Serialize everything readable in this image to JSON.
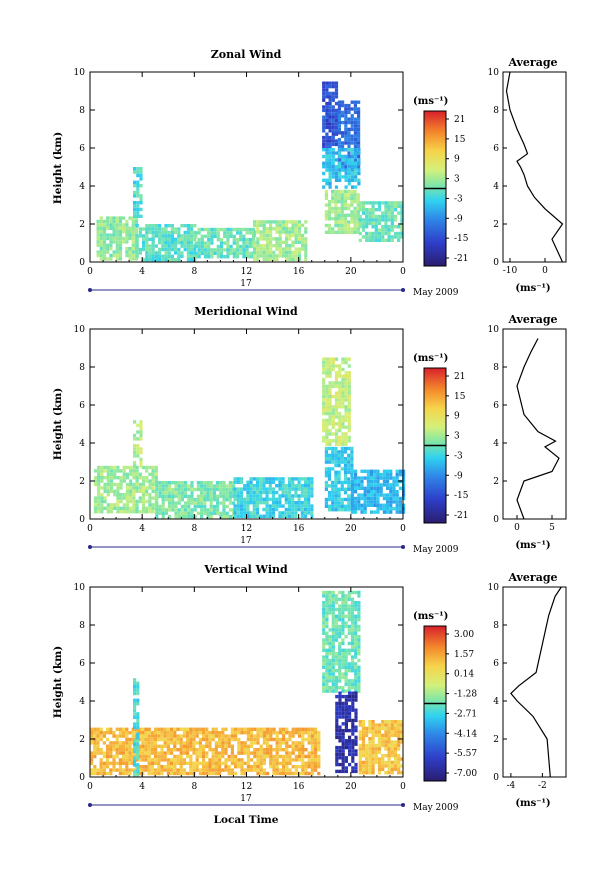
{
  "figure": {
    "x_axis_label": "Local Time",
    "date_label": "May 2009",
    "day_label": "17",
    "unit_label": "(ms⁻¹)",
    "average_title": "Average"
  },
  "chart_data": [
    {
      "type": "heatmap",
      "title": "Zonal Wind",
      "ylabel": "Height (km)",
      "x_ticks": [
        "0",
        "4",
        "8",
        "12",
        "16",
        "20",
        "0"
      ],
      "xlim": [
        0,
        24
      ],
      "y_ticks": [
        "0",
        "2",
        "4",
        "6",
        "8",
        "10"
      ],
      "ylim": [
        0,
        10
      ],
      "colorbar_ticks": [
        "21",
        "15",
        "9",
        "3",
        "-3",
        "-9",
        "-15",
        "-21"
      ],
      "colorbar_range": [
        -24,
        24
      ],
      "blocks": [
        {
          "x": [
            0.5,
            3.5
          ],
          "y": [
            0.2,
            2.4
          ],
          "v": 2
        },
        {
          "x": [
            3.3,
            3.8
          ],
          "y": [
            2.4,
            5.0
          ],
          "v": -2
        },
        {
          "x": [
            3.5,
            8.0
          ],
          "y": [
            0.2,
            2.0
          ],
          "v": -1
        },
        {
          "x": [
            8.0,
            12.5
          ],
          "y": [
            0.3,
            1.8
          ],
          "v": 0
        },
        {
          "x": [
            12.5,
            16.5
          ],
          "y": [
            0.2,
            2.2
          ],
          "v": 3
        },
        {
          "x": [
            17.8,
            19.0
          ],
          "y": [
            6.0,
            9.5
          ],
          "v": -15
        },
        {
          "x": [
            19.0,
            20.6
          ],
          "y": [
            5.0,
            8.5
          ],
          "v": -12
        },
        {
          "x": [
            17.8,
            20.6
          ],
          "y": [
            4.0,
            6.0
          ],
          "v": -5
        },
        {
          "x": [
            18.0,
            20.6
          ],
          "y": [
            1.5,
            3.8
          ],
          "v": 3
        },
        {
          "x": [
            20.6,
            24.0
          ],
          "y": [
            1.2,
            3.2
          ],
          "v": 0
        }
      ],
      "profile": {
        "xlabel": "(ms⁻¹)",
        "x_ticks": [
          "-10",
          "0"
        ],
        "xlim": [
          -12,
          6
        ],
        "ylim": [
          0,
          10
        ],
        "y_ticks": [
          "0",
          "2",
          "4",
          "6",
          "8",
          "10"
        ],
        "points": [
          [
            5,
            0
          ],
          [
            2,
            1.2
          ],
          [
            5,
            2
          ],
          [
            0,
            2.8
          ],
          [
            -3,
            3.4
          ],
          [
            -5,
            4
          ],
          [
            -6,
            4.6
          ],
          [
            -7,
            5
          ],
          [
            -8,
            5.3
          ],
          [
            -5,
            5.7
          ],
          [
            -6,
            6.2
          ],
          [
            -8,
            7
          ],
          [
            -10,
            8
          ],
          [
            -11,
            9
          ],
          [
            -10,
            10
          ]
        ]
      }
    },
    {
      "type": "heatmap",
      "title": "Meridional Wind",
      "ylabel": "Height (km)",
      "x_ticks": [
        "0",
        "4",
        "8",
        "12",
        "16",
        "20",
        "0"
      ],
      "xlim": [
        0,
        24
      ],
      "y_ticks": [
        "0",
        "2",
        "4",
        "6",
        "8",
        "10"
      ],
      "ylim": [
        0,
        10
      ],
      "colorbar_ticks": [
        "21",
        "15",
        "9",
        "3",
        "-3",
        "-9",
        "-15",
        "-21"
      ],
      "colorbar_range": [
        -24,
        24
      ],
      "blocks": [
        {
          "x": [
            0.3,
            5.0
          ],
          "y": [
            0.3,
            2.8
          ],
          "v": 3
        },
        {
          "x": [
            3.3,
            3.8
          ],
          "y": [
            2.8,
            5.2
          ],
          "v": 4
        },
        {
          "x": [
            5.0,
            11.0
          ],
          "y": [
            0.2,
            2.0
          ],
          "v": 1
        },
        {
          "x": [
            11.0,
            17.0
          ],
          "y": [
            0.2,
            2.2
          ],
          "v": -3
        },
        {
          "x": [
            17.8,
            20.0
          ],
          "y": [
            4.0,
            8.5
          ],
          "v": 5
        },
        {
          "x": [
            18.0,
            20.0
          ],
          "y": [
            0.5,
            3.8
          ],
          "v": -4
        },
        {
          "x": [
            20.0,
            24.0
          ],
          "y": [
            0.4,
            2.6
          ],
          "v": -6
        }
      ],
      "profile": {
        "xlabel": "(ms⁻¹)",
        "x_ticks": [
          "0",
          "5"
        ],
        "xlim": [
          -2,
          7
        ],
        "ylim": [
          0,
          10
        ],
        "y_ticks": [
          "0",
          "2",
          "4",
          "6",
          "8",
          "10"
        ],
        "points": [
          [
            1,
            0
          ],
          [
            0,
            1
          ],
          [
            1,
            2
          ],
          [
            5,
            2.5
          ],
          [
            6,
            3.2
          ],
          [
            4,
            3.8
          ],
          [
            5.5,
            4.1
          ],
          [
            3,
            4.6
          ],
          [
            1,
            5.5
          ],
          [
            0,
            7
          ],
          [
            1,
            8
          ],
          [
            2,
            8.8
          ],
          [
            3,
            9.5
          ]
        ]
      }
    },
    {
      "type": "heatmap",
      "title": "Vertical Wind",
      "ylabel": "Height (km)",
      "xlabel": "Local Time",
      "x_ticks": [
        "0",
        "4",
        "8",
        "12",
        "16",
        "20",
        "0"
      ],
      "xlim": [
        0,
        24
      ],
      "y_ticks": [
        "0",
        "2",
        "4",
        "6",
        "8",
        "10"
      ],
      "ylim": [
        0,
        10
      ],
      "colorbar_ticks": [
        "3.00",
        "1.57",
        "0.14",
        "-1.28",
        "-2.71",
        "-4.14",
        "-5.57",
        "-7.00"
      ],
      "colorbar_range": [
        -7.7,
        3.7
      ],
      "blocks": [
        {
          "x": [
            0.0,
            17.5
          ],
          "y": [
            0.1,
            2.6
          ],
          "v": 1.2
        },
        {
          "x": [
            3.3,
            3.7
          ],
          "y": [
            0.1,
            5.2
          ],
          "v": -2.5
        },
        {
          "x": [
            17.8,
            20.6
          ],
          "y": [
            4.5,
            9.8
          ],
          "v": -2.0
        },
        {
          "x": [
            18.8,
            20.4
          ],
          "y": [
            0.3,
            4.5
          ],
          "v": -6.6
        },
        {
          "x": [
            20.6,
            24.0
          ],
          "y": [
            0.3,
            3.0
          ],
          "v": 1.0
        }
      ],
      "profile": {
        "xlabel": "(ms⁻¹)",
        "x_ticks": [
          "-4",
          "-2"
        ],
        "xlim": [
          -4.5,
          -0.5
        ],
        "ylim": [
          0,
          10
        ],
        "y_ticks": [
          "0",
          "2",
          "4",
          "6",
          "8",
          "10"
        ],
        "points": [
          [
            -1.5,
            0
          ],
          [
            -1.6,
            1
          ],
          [
            -1.7,
            2
          ],
          [
            -2.6,
            3.2
          ],
          [
            -3.6,
            4
          ],
          [
            -4,
            4.4
          ],
          [
            -3.5,
            4.8
          ],
          [
            -2.4,
            5.5
          ],
          [
            -2,
            7
          ],
          [
            -1.6,
            8.5
          ],
          [
            -1.2,
            9.5
          ],
          [
            -0.8,
            10
          ]
        ]
      }
    }
  ]
}
